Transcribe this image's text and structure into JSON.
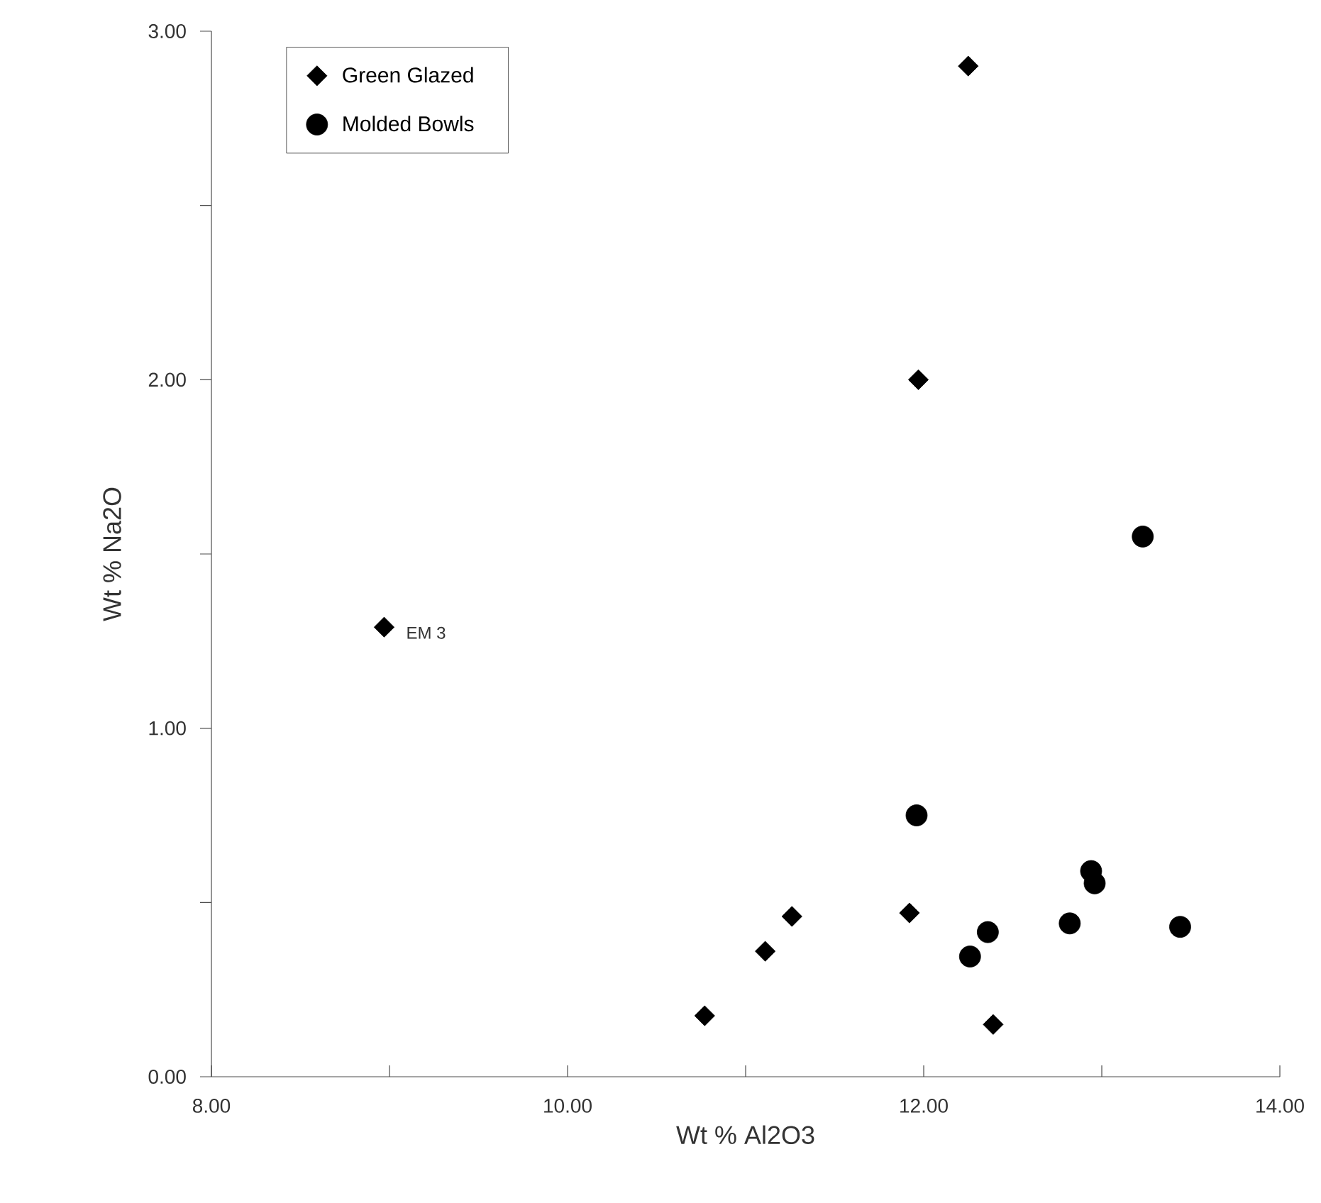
{
  "chart_data": {
    "type": "scatter",
    "xlabel": "Wt %  Al2O3",
    "ylabel": "Wt %  Na2O",
    "series": [
      {
        "name": "Green Glazed",
        "marker": "diamond",
        "color": "#000000",
        "x": [
          8.97,
          10.77,
          11.11,
          11.26,
          11.92,
          12.39,
          12.25,
          11.97
        ],
        "values": [
          1.29,
          0.175,
          0.36,
          0.46,
          0.47,
          0.15,
          2.9,
          2.0
        ]
      },
      {
        "name": "Molded Bowls",
        "marker": "circle",
        "color": "#000000",
        "x": [
          13.23,
          11.96,
          12.94,
          12.96,
          12.82,
          13.44,
          12.36,
          12.26
        ],
        "values": [
          1.55,
          0.75,
          0.59,
          0.555,
          0.44,
          0.43,
          0.415,
          0.345
        ]
      }
    ],
    "xlim": [
      8,
      14
    ],
    "ylim": [
      0,
      3
    ],
    "xticks": [
      {
        "value": 8,
        "label": "8.00"
      },
      {
        "value": 9,
        "label": null
      },
      {
        "value": 10,
        "label": "10.00"
      },
      {
        "value": 11,
        "label": null
      },
      {
        "value": 12,
        "label": "12.00"
      },
      {
        "value": 13,
        "label": null
      },
      {
        "value": 14,
        "label": "14.00"
      }
    ],
    "yticks": [
      {
        "value": 0,
        "label": "0.00"
      },
      {
        "value": 0.5,
        "label": null
      },
      {
        "value": 1,
        "label": "1.00"
      },
      {
        "value": 1.5,
        "label": null
      },
      {
        "value": 2,
        "label": "2.00"
      },
      {
        "value": 2.5,
        "label": null
      },
      {
        "value": 3,
        "label": "3.00"
      }
    ],
    "annotations": [
      {
        "text": "EM 3",
        "x": 8.97,
        "y": 1.29
      }
    ],
    "grid": false,
    "legend": "top left"
  }
}
